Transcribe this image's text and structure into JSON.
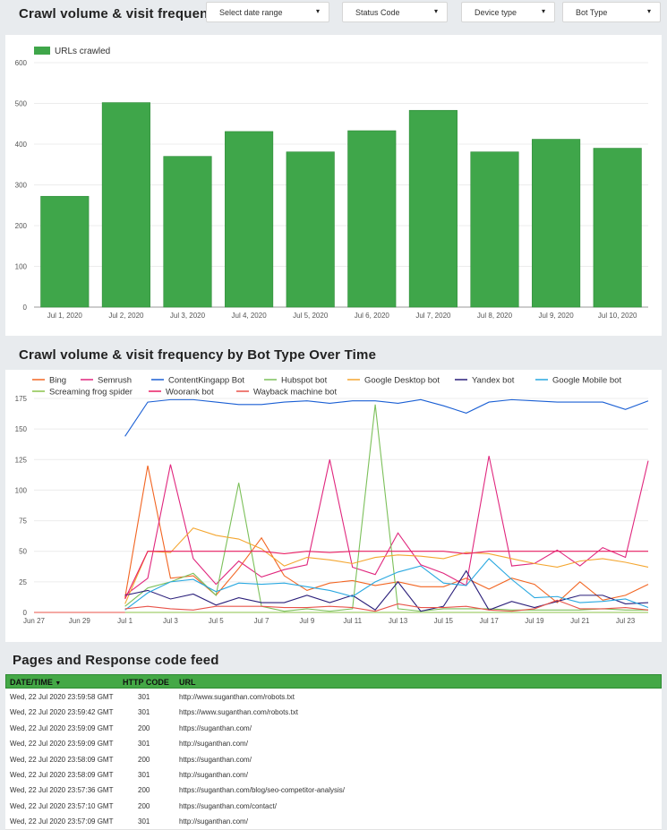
{
  "header": {
    "title": "Crawl volume & visit frequency",
    "filters": [
      {
        "label": "Select date range"
      },
      {
        "label": "Status Code"
      },
      {
        "label": "Device type"
      },
      {
        "label": "Bot Type"
      }
    ]
  },
  "section2_title": "Crawl volume & visit frequency by Bot Type Over Time",
  "section3_title": "Pages and Response code feed",
  "colors": {
    "bar": "#3fa64a",
    "table_header": "#44a846"
  },
  "chart_data": [
    {
      "type": "bar",
      "categories": [
        "Jul 1, 2020",
        "Jul 2, 2020",
        "Jul 3, 2020",
        "Jul 4, 2020",
        "Jul 5, 2020",
        "Jul 6, 2020",
        "Jul 7, 2020",
        "Jul 8, 2020",
        "Jul 9, 2020",
        "Jul 10, 2020"
      ],
      "series": [
        {
          "name": "URLs crawled",
          "values": [
            272,
            502,
            370,
            431,
            381,
            433,
            483,
            381,
            412,
            390
          ],
          "color": "#3fa64a"
        }
      ],
      "ylim": [
        0,
        600
      ],
      "yticks": [
        0,
        100,
        200,
        300,
        400,
        500,
        600
      ],
      "legend": "top-left",
      "grid": true
    },
    {
      "type": "line",
      "x": [
        "Jun 27",
        "Jun 28",
        "Jun 29",
        "Jun 30",
        "Jul 1",
        "Jul 2",
        "Jul 3",
        "Jul 4",
        "Jul 5",
        "Jul 6",
        "Jul 7",
        "Jul 8",
        "Jul 9",
        "Jul 10",
        "Jul 11",
        "Jul 12",
        "Jul 13",
        "Jul 14",
        "Jul 15",
        "Jul 16",
        "Jul 17",
        "Jul 18",
        "Jul 19",
        "Jul 20",
        "Jul 21",
        "Jul 22",
        "Jul 23",
        "Jul 24"
      ],
      "xticks": [
        "Jun 27",
        "Jun 29",
        "Jul 1",
        "Jul 3",
        "Jul 5",
        "Jul 7",
        "Jul 9",
        "Jul 11",
        "Jul 13",
        "Jul 15",
        "Jul 17",
        "Jul 19",
        "Jul 21",
        "Jul 23"
      ],
      "ylim": [
        0,
        175
      ],
      "yticks": [
        0,
        25,
        50,
        75,
        100,
        125,
        150,
        175
      ],
      "legend": "top",
      "grid": true,
      "series": [
        {
          "name": "Bing",
          "color": "#f26522",
          "values": [
            0,
            0,
            0,
            0,
            12,
            120,
            28,
            30,
            14,
            36,
            61,
            30,
            18,
            24,
            26,
            22,
            25,
            21,
            21,
            28,
            19,
            28,
            23,
            8,
            25,
            10,
            14,
            23
          ]
        },
        {
          "name": "Semrush",
          "color": "#e0267d",
          "values": [
            0,
            0,
            0,
            0,
            14,
            28,
            121,
            44,
            23,
            42,
            29,
            35,
            39,
            125,
            37,
            31,
            65,
            39,
            32,
            22,
            128,
            38,
            40,
            51,
            38,
            53,
            45,
            124
          ]
        },
        {
          "name": "ContentKingapp Bot",
          "color": "#1a5fd4",
          "values": [
            0,
            0,
            0,
            0,
            144,
            172,
            174,
            174,
            172,
            170,
            170,
            172,
            173,
            171,
            173,
            173,
            171,
            174,
            169,
            163,
            172,
            174,
            173,
            172,
            172,
            172,
            166,
            173
          ]
        },
        {
          "name": "Hubspot bot",
          "color": "#7cc05a",
          "values": [
            0,
            0,
            0,
            0,
            5,
            20,
            25,
            32,
            14,
            106,
            5,
            1,
            3,
            1,
            3,
            170,
            3,
            1,
            3,
            3,
            3,
            2,
            2,
            2,
            2,
            3,
            2,
            2
          ]
        },
        {
          "name": "Google Desktop bot",
          "color": "#f4a630",
          "values": [
            0,
            0,
            0,
            0,
            7,
            50,
            49,
            69,
            63,
            60,
            52,
            38,
            45,
            43,
            40,
            45,
            47,
            46,
            44,
            49,
            48,
            44,
            40,
            37,
            42,
            44,
            41,
            37
          ]
        },
        {
          "name": "Yandex bot",
          "color": "#2b1f7a",
          "values": [
            0,
            0,
            0,
            0,
            14,
            18,
            11,
            15,
            6,
            12,
            8,
            8,
            14,
            8,
            14,
            2,
            25,
            1,
            5,
            34,
            2,
            9,
            4,
            9,
            14,
            14,
            7,
            8
          ]
        },
        {
          "name": "Google Mobile bot",
          "color": "#29a8e0",
          "values": [
            0,
            0,
            0,
            0,
            2,
            16,
            25,
            27,
            17,
            24,
            23,
            24,
            21,
            18,
            13,
            25,
            33,
            38,
            24,
            22,
            44,
            27,
            12,
            13,
            8,
            9,
            11,
            4
          ]
        },
        {
          "name": "Screaming frog spider",
          "color": "#8bc34a",
          "values": [
            0,
            0,
            0,
            0,
            0,
            0,
            0,
            0,
            0,
            0,
            0,
            0,
            0,
            0,
            0,
            0,
            0,
            0,
            0,
            0,
            0,
            0,
            0,
            0,
            0,
            0,
            0,
            0
          ]
        },
        {
          "name": "Woorank bot",
          "color": "#e91e63",
          "values": [
            0,
            0,
            0,
            0,
            11,
            50,
            50,
            50,
            50,
            50,
            50,
            48,
            50,
            49,
            50,
            50,
            50,
            50,
            50,
            48,
            50,
            50,
            50,
            50,
            50,
            50,
            50,
            50
          ]
        },
        {
          "name": "Wayback machine bot",
          "color": "#e8534a",
          "values": [
            0,
            0,
            0,
            0,
            3,
            5,
            3,
            2,
            5,
            5,
            5,
            4,
            4,
            5,
            4,
            1,
            7,
            4,
            4,
            5,
            2,
            1,
            3,
            10,
            3,
            3,
            4,
            2
          ]
        }
      ]
    }
  ],
  "table": {
    "headers": {
      "date": "DATE/TIME",
      "code": "HTTP CODE",
      "url": "URL"
    },
    "rows": [
      {
        "date": "Wed, 22 Jul 2020 23:59:58 GMT",
        "code": "301",
        "url": "http://www.suganthan.com/robots.txt"
      },
      {
        "date": "Wed, 22 Jul 2020 23:59:42 GMT",
        "code": "301",
        "url": "https://www.suganthan.com/robots.txt"
      },
      {
        "date": "Wed, 22 Jul 2020 23:59:09 GMT",
        "code": "200",
        "url": "https://suganthan.com/"
      },
      {
        "date": "Wed, 22 Jul 2020 23:59:09 GMT",
        "code": "301",
        "url": "http://suganthan.com/"
      },
      {
        "date": "Wed, 22 Jul 2020 23:58:09 GMT",
        "code": "200",
        "url": "https://suganthan.com/"
      },
      {
        "date": "Wed, 22 Jul 2020 23:58:09 GMT",
        "code": "301",
        "url": "http://suganthan.com/"
      },
      {
        "date": "Wed, 22 Jul 2020 23:57:36 GMT",
        "code": "200",
        "url": "https://suganthan.com/blog/seo-competitor-analysis/"
      },
      {
        "date": "Wed, 22 Jul 2020 23:57:10 GMT",
        "code": "200",
        "url": "https://suganthan.com/contact/"
      },
      {
        "date": "Wed, 22 Jul 2020 23:57:09 GMT",
        "code": "301",
        "url": "http://suganthan.com/"
      }
    ]
  }
}
